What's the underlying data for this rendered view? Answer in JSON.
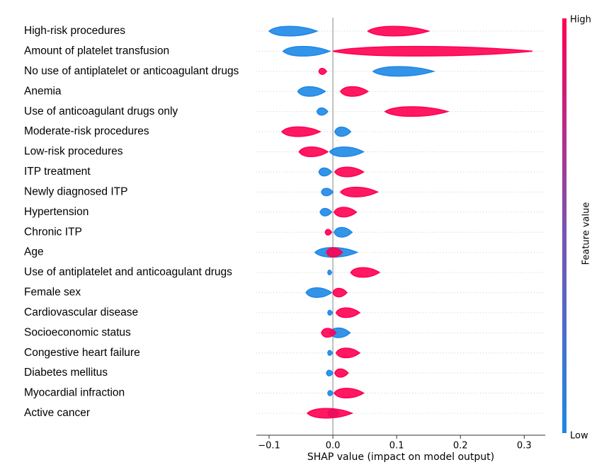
{
  "chart_data": {
    "type": "beeswarm",
    "xlabel": "SHAP value (impact on model output)",
    "xlim": [
      -0.12,
      0.333
    ],
    "xticks": [
      {
        "value": -0.1,
        "label": "−0.1"
      },
      {
        "value": 0,
        "label": "0.0"
      },
      0.1,
      0.2,
      0.3
    ],
    "colorbar_label": "Feature value",
    "categories": [
      "High-risk procedures",
      "Amount of platelet transfusion",
      "No use of antiplatelet or anticoagulant drugs",
      "Anemia",
      "Use of anticoagulant drugs only",
      "Moderate-risk procedures",
      "Low-risk procedures",
      "ITP treatment",
      "Newly diagnosed ITP",
      "Hypertension",
      "Chronic ITP",
      "Age",
      "Use of antiplatelet and anticoagulant drugs",
      "Female sex",
      "Cardiovascular disease",
      "Socioeconomic status",
      "Congestive heart failure",
      "Diabetes mellitus",
      "Myocardial infraction",
      "Active cancer"
    ],
    "series": [
      {
        "name": "Low",
        "color": "#1e88e5",
        "values": [
          [
            -0.1,
            -0.025
          ],
          [
            -0.078,
            -0.005
          ],
          [
            0.063,
            0.158
          ],
          [
            -0.055,
            -0.012
          ],
          [
            -0.025,
            -0.008
          ],
          [
            0.003,
            0.028
          ],
          [
            -0.005,
            0.048
          ],
          [
            -0.022,
            -0.002
          ],
          [
            -0.018,
            0
          ],
          [
            -0.02,
            -0.002
          ],
          [
            0.002,
            0.03
          ],
          [
            -0.028,
            0.038
          ],
          [
            -0.008,
            -0.002
          ],
          [
            -0.042,
            -0.002
          ],
          [
            -0.008,
            -0.001
          ],
          [
            -0.005,
            0.027
          ],
          [
            -0.008,
            -0.001
          ],
          [
            -0.01,
            0
          ],
          [
            -0.008,
            0
          ],
          [
            -0.008,
            0.01
          ]
        ]
      },
      {
        "name": "High",
        "color": "#ff0052",
        "values": [
          [
            0.055,
            0.15
          ],
          [
            0,
            0.313
          ],
          [
            -0.022,
            -0.01
          ],
          [
            0.012,
            0.055
          ],
          [
            0.082,
            0.18
          ],
          [
            -0.08,
            -0.02
          ],
          [
            -0.053,
            -0.008
          ],
          [
            0.003,
            0.048
          ],
          [
            0.012,
            0.07
          ],
          [
            0.002,
            0.037
          ],
          [
            -0.012,
            -0.002
          ],
          [
            -0.01,
            0.015
          ],
          [
            0.028,
            0.073
          ],
          [
            0,
            0.022
          ],
          [
            0.005,
            0.042
          ],
          [
            -0.018,
            0.005
          ],
          [
            0.005,
            0.042
          ],
          [
            0.003,
            0.024
          ],
          [
            0.002,
            0.048
          ],
          [
            -0.04,
            0.03
          ]
        ]
      }
    ]
  }
}
